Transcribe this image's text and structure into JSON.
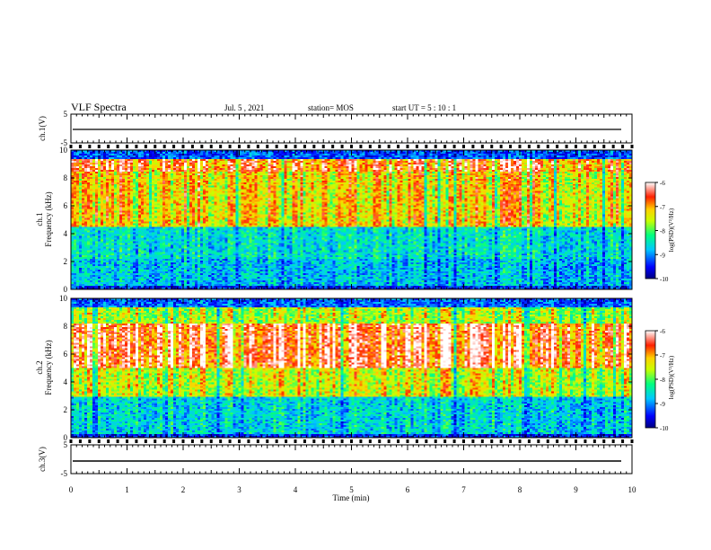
{
  "header": {
    "title": "VLF Spectra",
    "date": "Jul. 5 , 2021",
    "station": "station= MOS",
    "start": "start UT = 5 : 10 : 1"
  },
  "chart_data": [
    {
      "type": "line",
      "name": "ch1-waveform",
      "ylabel": "ch.1(V)",
      "ylim": [
        -5,
        5
      ],
      "yticks": [
        "5",
        "-5"
      ],
      "xlim": [
        0,
        10
      ]
    },
    {
      "type": "heatmap",
      "name": "ch1-spectrogram",
      "ylabel": "ch.1",
      "ylabel2": "Frequency (kHz)",
      "ylim": [
        0,
        10
      ],
      "yticks": [
        "0",
        "2",
        "4",
        "6",
        "8",
        "10"
      ],
      "xlim": [
        0,
        10
      ],
      "colorbar": {
        "label": "log(PSD)(V²/Hz)",
        "range": [
          -10,
          -6
        ],
        "ticks": [
          "-6",
          "-7",
          "-8",
          "-9",
          "-10"
        ]
      }
    },
    {
      "type": "heatmap",
      "name": "ch2-spectrogram",
      "ylabel": "ch.2",
      "ylabel2": "Frequency (kHz)",
      "ylim": [
        0,
        10
      ],
      "yticks": [
        "0",
        "2",
        "4",
        "6",
        "8",
        "10"
      ],
      "xlim": [
        0,
        10
      ],
      "colorbar": {
        "label": "log(PSD)(V²/Hz)",
        "range": [
          -10,
          -6
        ],
        "ticks": [
          "-6",
          "-7",
          "-8",
          "-9",
          "-10"
        ]
      }
    },
    {
      "type": "line",
      "name": "ch3-waveform",
      "ylabel": "ch.3(V)",
      "ylim": [
        -5,
        5
      ],
      "yticks": [
        "5",
        "-5"
      ],
      "xlim": [
        0,
        10
      ],
      "xlabel": "Time (min)",
      "xticks": [
        "0",
        "1",
        "2",
        "3",
        "4",
        "5",
        "6",
        "7",
        "8",
        "9",
        "10"
      ]
    }
  ]
}
